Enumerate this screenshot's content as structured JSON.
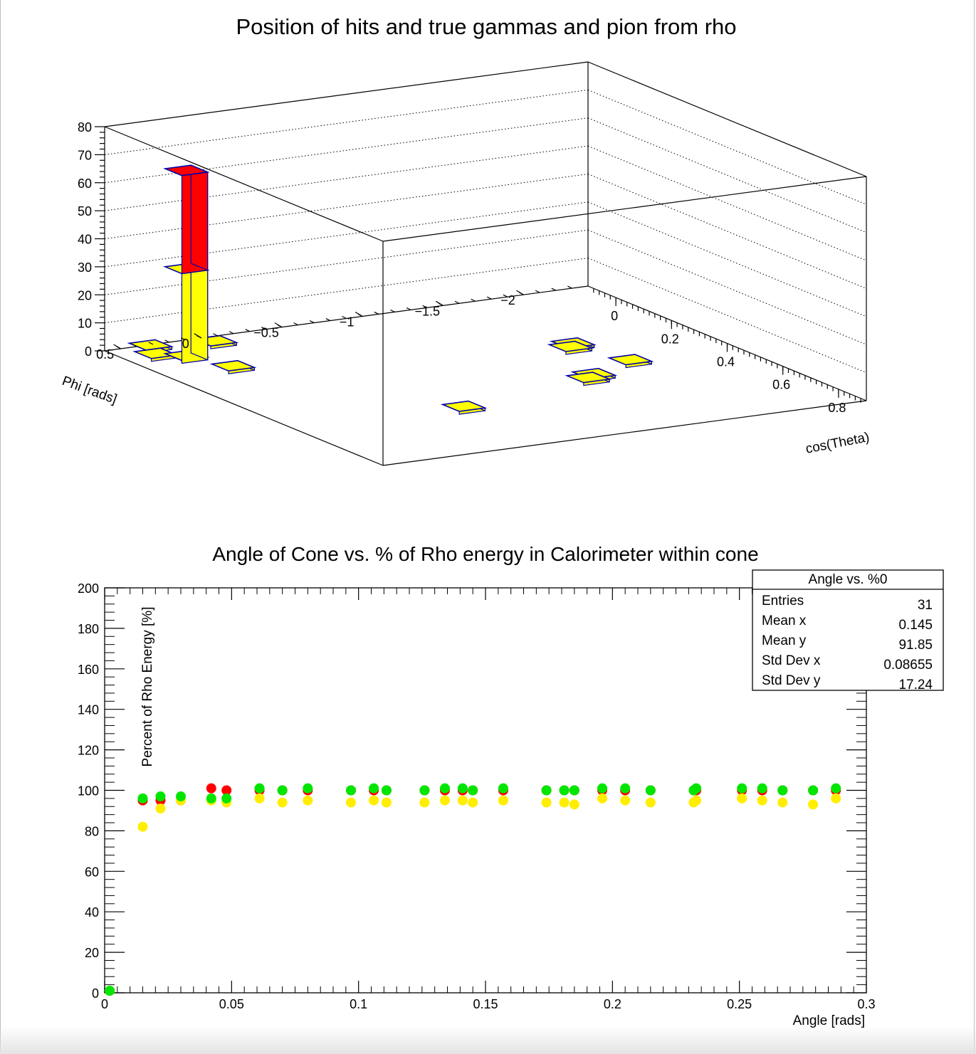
{
  "colors": {
    "gamma_fill": "#ffff00",
    "gamma_edge": "#0000aa",
    "pion_fill": "#ff0000",
    "series_red": "#ff0000",
    "series_yellow": "#ffee00",
    "series_green": "#00e600",
    "frame": "#000000"
  },
  "chart_data": [
    {
      "type": "lego3d",
      "title": "Position of hits and true gammas and pion from rho",
      "xlabel": "cos(Theta)",
      "ylabel": "Phi [rads]",
      "zlabel": "",
      "xlim": [
        -0.1,
        0.9
      ],
      "ylim": [
        -2.4,
        0.6
      ],
      "zlim": [
        0,
        80
      ],
      "x_ticks": [
        0,
        0.2,
        0.4,
        0.6,
        0.8
      ],
      "x_tick_labels": [
        "0",
        "0.2",
        "0.4",
        "0.6",
        "0.8"
      ],
      "y_ticks": [
        0.5,
        0,
        -0.5,
        -1,
        -1.5,
        -2
      ],
      "y_tick_labels": [
        "0.5",
        "0",
        "−0.5",
        "−1",
        "−1.5",
        "−2"
      ],
      "z_ticks": [
        0,
        10,
        20,
        30,
        40,
        50,
        60,
        70,
        80
      ],
      "z_tick_labels": [
        "0",
        "10",
        "20",
        "30",
        "40",
        "50",
        "60",
        "70",
        "80"
      ],
      "grid": true,
      "tall_bar": {
        "x": 0.02,
        "y": 0.3,
        "gamma_height": 32,
        "pion_height": 35
      },
      "hits": [
        {
          "x": -0.08,
          "y": 0.35,
          "z": 1
        },
        {
          "x": -0.05,
          "y": 0.0,
          "z": 1
        },
        {
          "x": -0.02,
          "y": 0.42,
          "z": 1
        },
        {
          "x": 0.13,
          "y": 0.2,
          "z": 1
        },
        {
          "x": 0.28,
          "y": -1.65,
          "z": 1
        },
        {
          "x": 0.3,
          "y": -1.6,
          "z": 1
        },
        {
          "x": 0.5,
          "y": -1.4,
          "z": 1
        },
        {
          "x": 0.52,
          "y": -1.33,
          "z": 1
        },
        {
          "x": 0.44,
          "y": -1.73,
          "z": 1
        },
        {
          "x": 0.6,
          "y": -0.42,
          "z": 1
        }
      ]
    },
    {
      "type": "scatter",
      "title": "Angle of Cone vs. % of Rho energy in Calorimeter within cone",
      "xlabel": "Angle [rads]",
      "ylabel": "Percent of Rho Energy [%]",
      "xlim": [
        0,
        0.3
      ],
      "ylim": [
        0,
        200
      ],
      "x_ticks": [
        0,
        0.05,
        0.1,
        0.15,
        0.2,
        0.25,
        0.3
      ],
      "x_tick_labels": [
        "0",
        "0.05",
        "0.1",
        "0.15",
        "0.2",
        "0.25",
        "0.3"
      ],
      "y_ticks": [
        0,
        20,
        40,
        60,
        80,
        100,
        120,
        140,
        160,
        180,
        200
      ],
      "y_tick_labels": [
        "0",
        "20",
        "40",
        "60",
        "80",
        "100",
        "120",
        "140",
        "160",
        "180",
        "200"
      ],
      "grid": false,
      "legend": "none",
      "x": [
        0.002,
        0.015,
        0.022,
        0.03,
        0.042,
        0.048,
        0.061,
        0.07,
        0.08,
        0.097,
        0.106,
        0.111,
        0.126,
        0.134,
        0.141,
        0.145,
        0.157,
        0.174,
        0.181,
        0.185,
        0.196,
        0.205,
        0.215,
        0.232,
        0.233,
        0.251,
        0.259,
        0.267,
        0.279,
        0.288
      ],
      "series": [
        {
          "color": "#ff0000",
          "values": [
            1,
            95,
            95,
            95,
            101,
            100,
            100,
            100,
            100,
            100,
            100,
            100,
            100,
            100,
            100,
            100,
            100,
            100,
            100,
            100,
            100,
            100,
            100,
            100,
            100,
            100,
            100,
            100,
            100,
            100
          ]
        },
        {
          "color": "#ffee00",
          "values": [
            1,
            82,
            91,
            95,
            95,
            94,
            96,
            94,
            95,
            94,
            95,
            94,
            94,
            95,
            95,
            94,
            95,
            94,
            94,
            93,
            96,
            95,
            94,
            94,
            95,
            96,
            95,
            94,
            93,
            96
          ]
        },
        {
          "color": "#00e600",
          "values": [
            1,
            96,
            97,
            97,
            96,
            96,
            101,
            100,
            101,
            100,
            101,
            100,
            100,
            101,
            101,
            100,
            101,
            100,
            100,
            100,
            101,
            101,
            100,
            100,
            101,
            101,
            101,
            100,
            100,
            101
          ]
        }
      ],
      "stats_box": {
        "title": "Angle vs. %0",
        "rows": [
          {
            "label": "Entries",
            "value": "31"
          },
          {
            "label": "Mean x",
            "value": "0.145"
          },
          {
            "label": "Mean y",
            "value": "91.85"
          },
          {
            "label": "Std Dev x",
            "value": "0.08655"
          },
          {
            "label": "Std Dev y",
            "value": "17.24"
          }
        ]
      }
    }
  ]
}
